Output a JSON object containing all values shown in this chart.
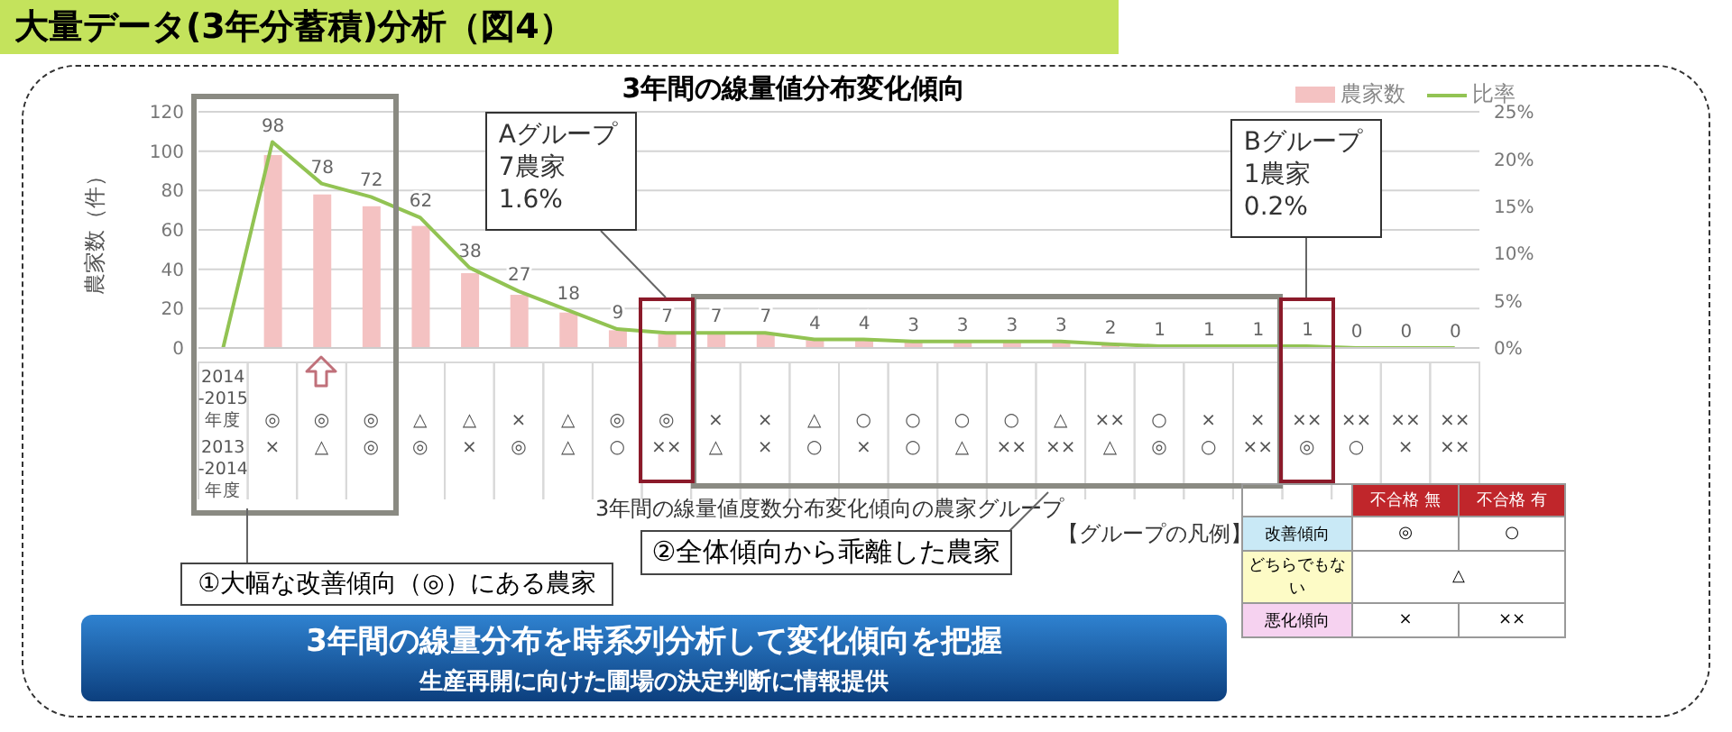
{
  "chart_data": {
    "type": "bar",
    "title": "大量データ(3年分蓄積)分析（図4）",
    "subtitle": "3年間の線量値分布変化傾向",
    "ylabel": "農家数（件）",
    "categories": [
      "2014\n-2015\n年度\n2013\n-2014\n年度",
      "◎\n×",
      "◎\n△",
      "◎\n◎",
      "△\n◎",
      "△\n×",
      "×\n◎",
      "△\n△",
      "◎\n○",
      "◎\n××",
      "×\n△",
      "×\n×",
      "△\n○",
      "○\n×",
      "○\n○",
      "○\n△",
      "○\n××",
      "△\n××",
      "××\n△",
      "○\n◎",
      "×\n○",
      "×\n××",
      "××\n◎",
      "××\n○",
      "××\n×",
      "××\n××"
    ],
    "series": [
      {
        "name": "農家数",
        "color": "#f4c2c2",
        "values": [
          null,
          98,
          78,
          72,
          62,
          38,
          27,
          18,
          9,
          7,
          7,
          7,
          4,
          4,
          3,
          3,
          3,
          3,
          2,
          1,
          1,
          1,
          1,
          0,
          0,
          0
        ],
        "value_labels": [
          null,
          "98",
          "78",
          "72",
          "62",
          "38",
          "27",
          "18",
          "9",
          "7",
          "7",
          "7",
          "4",
          "4",
          "3",
          "3",
          "3",
          "3",
          "2",
          "1",
          "1",
          "1",
          "1",
          "0",
          "0",
          "0"
        ]
      },
      {
        "name": "比率",
        "type": "line",
        "axis": "y2",
        "color": "#92c353",
        "values": [
          0,
          21.8,
          17.4,
          16.0,
          13.8,
          8.5,
          6.0,
          4.0,
          2.0,
          1.6,
          1.6,
          1.6,
          0.9,
          0.9,
          0.7,
          0.7,
          0.7,
          0.7,
          0.4,
          0.2,
          0.2,
          0.2,
          0.2,
          0,
          0,
          0
        ]
      }
    ],
    "ylim": [
      0,
      120
    ],
    "yticks": [
      0,
      20,
      40,
      60,
      80,
      100,
      120
    ],
    "y2lim": [
      0,
      25
    ],
    "y2ticks": [
      {
        "value": 0,
        "label": "0%"
      },
      {
        "value": 5,
        "label": "5%"
      },
      {
        "value": 10,
        "label": "10%"
      },
      {
        "value": 15,
        "label": "15%"
      },
      {
        "value": 20,
        "label": "20%"
      },
      {
        "value": 25,
        "label": "25%"
      }
    ],
    "grid": "y",
    "legend": "top right",
    "annotations": [
      "Aグループ\n7農家\n1.6%",
      "Bグループ\n1農家\n0.2%",
      "3年間の線量値度数分布変化傾向の農家グループ",
      "①大幅な改善傾向（◎）にある農家",
      "②全体傾向から乖離した農家",
      "3年間の線量分布を時系列分析して変化傾向を把握",
      "生産再開に向けた圃場の決定判断に情報提供",
      "【グループの凡例】",
      "不合格 無",
      "不合格 有",
      "改善傾向",
      "◎",
      "○",
      "どちらでもない",
      "△",
      "悪化傾向",
      "×",
      "××"
    ]
  }
}
